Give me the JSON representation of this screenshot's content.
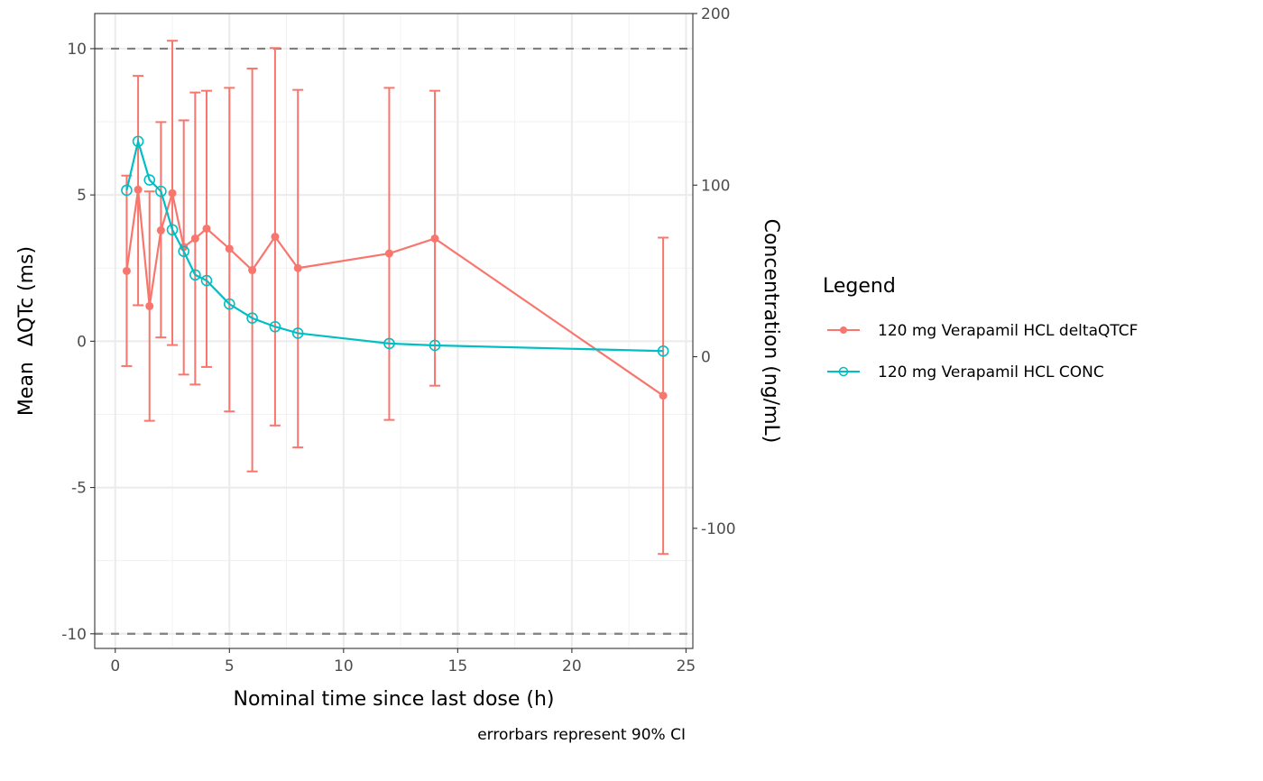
{
  "chart_data": {
    "type": "line",
    "title": "",
    "xlabel": "Nominal time since last dose (h)",
    "ylabel_prefix": "Mean",
    "ylabel": "ΔQTc (ms)",
    "y2label": "Concentration (ng/mL)",
    "caption": "errorbars represent 90% CI",
    "xlim": [
      -0.9,
      25.3
    ],
    "ylim": [
      -10.5,
      11.2
    ],
    "y2lim": [
      -170,
      200
    ],
    "x_ticks": [
      0,
      5,
      10,
      15,
      20,
      25
    ],
    "x_tick_labels": [
      "0",
      "5",
      "10",
      "15",
      "20",
      "25"
    ],
    "y_ticks": [
      -10,
      -5,
      0,
      5,
      10
    ],
    "y_tick_labels": [
      "-10",
      "-5",
      "0",
      "5",
      "10"
    ],
    "y2_ticks": [
      -100,
      0,
      100,
      200
    ],
    "y2_tick_labels": [
      "-100",
      "0",
      "100",
      "200"
    ],
    "reference_lines": [
      10,
      -10
    ],
    "grid": true,
    "legend": {
      "title": "Legend",
      "position": "right",
      "entries": [
        {
          "label": "120 mg Verapamil HCL deltaQTCF",
          "color": "#f8766d",
          "marker": "filled-circle"
        },
        {
          "label": "120 mg Verapamil HCL CONC",
          "color": "#00bfc4",
          "marker": "open-circle"
        }
      ]
    },
    "x": [
      0.5,
      1,
      1.5,
      2,
      2.5,
      3,
      3.5,
      4,
      5,
      6,
      7,
      8,
      12,
      14,
      24
    ],
    "series": [
      {
        "name": "120 mg Verapamil HCL deltaQTCF",
        "axis": "left",
        "color": "#f8766d",
        "values": [
          2.4,
          5.18,
          1.2,
          3.79,
          5.06,
          3.22,
          3.51,
          3.85,
          3.16,
          2.43,
          3.57,
          2.5,
          3.0,
          3.51,
          -1.86
        ],
        "ci_lower": [
          -0.85,
          1.23,
          -2.72,
          0.13,
          -0.13,
          -1.14,
          -1.48,
          -0.88,
          -2.4,
          -4.45,
          -2.88,
          -3.63,
          -2.69,
          -1.52,
          -7.27
        ],
        "ci_upper": [
          5.66,
          9.07,
          5.12,
          7.49,
          10.27,
          7.55,
          8.5,
          8.56,
          8.66,
          9.32,
          10.02,
          8.59,
          8.66,
          8.56,
          3.54
        ]
      },
      {
        "name": "120 mg Verapamil HCL CONC",
        "axis": "right",
        "color": "#00bfc4",
        "values": [
          97.0,
          125.5,
          103.0,
          96.4,
          74.0,
          61.4,
          47.7,
          44.4,
          30.7,
          22.5,
          17.5,
          13.7,
          7.7,
          6.6,
          3.3
        ]
      }
    ]
  }
}
